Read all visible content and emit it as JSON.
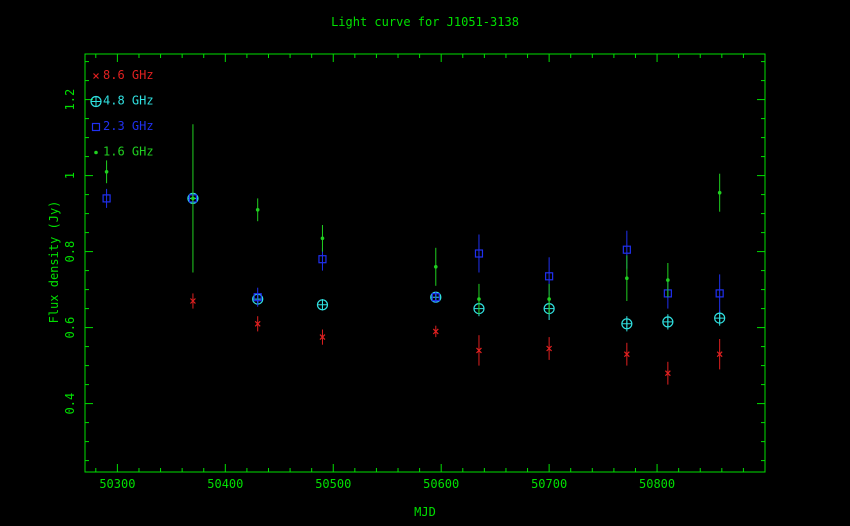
{
  "chart_data": {
    "type": "scatter",
    "title": "Light curve for J1051-3138",
    "xlabel": "MJD",
    "ylabel": "Flux density (Jy)",
    "xlim": [
      50270,
      50900
    ],
    "ylim": [
      0.22,
      1.32
    ],
    "xticks": [
      50300,
      50400,
      50500,
      50600,
      50700,
      50800
    ],
    "xtick_labels": [
      "50300",
      "50400",
      "50500",
      "50600",
      "50700",
      "50800"
    ],
    "yticks": [
      0.4,
      0.6,
      0.8,
      1.0,
      1.2
    ],
    "ytick_labels": [
      "0.4",
      "0.6",
      "0.8",
      "1",
      "1.2"
    ],
    "grid": false,
    "legend_position": "top-left",
    "series": [
      {
        "name": "8.6 GHz",
        "marker": "cross",
        "color": "#e02020",
        "points": [
          {
            "x": 50370,
            "y": 0.67,
            "err": 0.02
          },
          {
            "x": 50430,
            "y": 0.61,
            "err": 0.02
          },
          {
            "x": 50490,
            "y": 0.575,
            "err": 0.02
          },
          {
            "x": 50595,
            "y": 0.59,
            "err": 0.015
          },
          {
            "x": 50635,
            "y": 0.54,
            "err": 0.04
          },
          {
            "x": 50700,
            "y": 0.545,
            "err": 0.03
          },
          {
            "x": 50772,
            "y": 0.53,
            "err": 0.03
          },
          {
            "x": 50810,
            "y": 0.48,
            "err": 0.03
          },
          {
            "x": 50858,
            "y": 0.53,
            "err": 0.04
          }
        ]
      },
      {
        "name": "4.8 GHz",
        "marker": "circle-cross",
        "color": "#30e0e0",
        "points": [
          {
            "x": 50370,
            "y": 0.94,
            "err": 0.01
          },
          {
            "x": 50430,
            "y": 0.675,
            "err": 0.015
          },
          {
            "x": 50490,
            "y": 0.66,
            "err": 0.015
          },
          {
            "x": 50595,
            "y": 0.68,
            "err": 0.015
          },
          {
            "x": 50635,
            "y": 0.65,
            "err": 0.02
          },
          {
            "x": 50700,
            "y": 0.65,
            "err": 0.03
          },
          {
            "x": 50772,
            "y": 0.61,
            "err": 0.02
          },
          {
            "x": 50810,
            "y": 0.615,
            "err": 0.02
          },
          {
            "x": 50858,
            "y": 0.625,
            "err": 0.02
          }
        ]
      },
      {
        "name": "2.3 GHz",
        "marker": "square",
        "color": "#2030f0",
        "points": [
          {
            "x": 50290,
            "y": 0.94,
            "err": 0.025
          },
          {
            "x": 50370,
            "y": 0.94,
            "err": 0.015
          },
          {
            "x": 50430,
            "y": 0.68,
            "err": 0.025
          },
          {
            "x": 50490,
            "y": 0.78,
            "err": 0.03
          },
          {
            "x": 50595,
            "y": 0.68,
            "err": 0.015
          },
          {
            "x": 50635,
            "y": 0.795,
            "err": 0.05
          },
          {
            "x": 50700,
            "y": 0.735,
            "err": 0.05
          },
          {
            "x": 50772,
            "y": 0.805,
            "err": 0.05
          },
          {
            "x": 50810,
            "y": 0.69,
            "err": 0.04
          },
          {
            "x": 50858,
            "y": 0.69,
            "err": 0.05
          }
        ]
      },
      {
        "name": "1.6 GHz",
        "marker": "dot",
        "color": "#20d020",
        "points": [
          {
            "x": 50290,
            "y": 1.01,
            "err": 0.03
          },
          {
            "x": 50370,
            "y": 0.94,
            "err": 0.195
          },
          {
            "x": 50430,
            "y": 0.91,
            "err": 0.03
          },
          {
            "x": 50490,
            "y": 0.835,
            "err": 0.035
          },
          {
            "x": 50595,
            "y": 0.76,
            "err": 0.05
          },
          {
            "x": 50635,
            "y": 0.675,
            "err": 0.04
          },
          {
            "x": 50700,
            "y": 0.675,
            "err": 0.04
          },
          {
            "x": 50772,
            "y": 0.73,
            "err": 0.06
          },
          {
            "x": 50810,
            "y": 0.725,
            "err": 0.045
          },
          {
            "x": 50858,
            "y": 0.955,
            "err": 0.05
          }
        ]
      }
    ]
  }
}
